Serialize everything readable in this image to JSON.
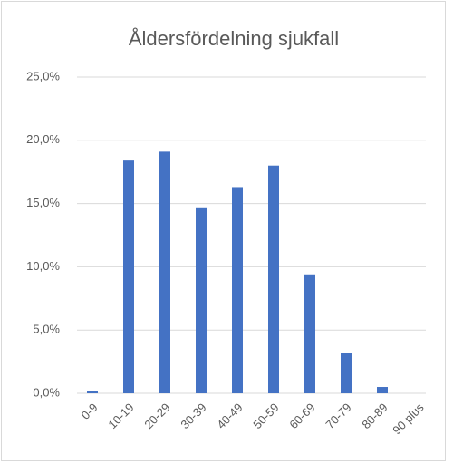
{
  "chart_data": {
    "type": "bar",
    "title": "Åldersfördelning sjukfall",
    "categories": [
      "0-9",
      "10-19",
      "20-29",
      "30-39",
      "40-49",
      "50-59",
      "60-69",
      "70-79",
      "80-89",
      "90 plus"
    ],
    "values": [
      0.15,
      18.4,
      19.1,
      14.7,
      16.3,
      18.0,
      9.4,
      3.2,
      0.5,
      0
    ],
    "color": "#4472c4",
    "ylim": [
      0,
      25
    ],
    "yticks": [
      {
        "value": 0,
        "label": "0,0%"
      },
      {
        "value": 5,
        "label": "5,0%"
      },
      {
        "value": 10,
        "label": "10,0%"
      },
      {
        "value": 15,
        "label": "15,0%"
      },
      {
        "value": 20,
        "label": "20,0%"
      },
      {
        "value": 25,
        "label": "25,0%"
      }
    ],
    "grid": true
  }
}
